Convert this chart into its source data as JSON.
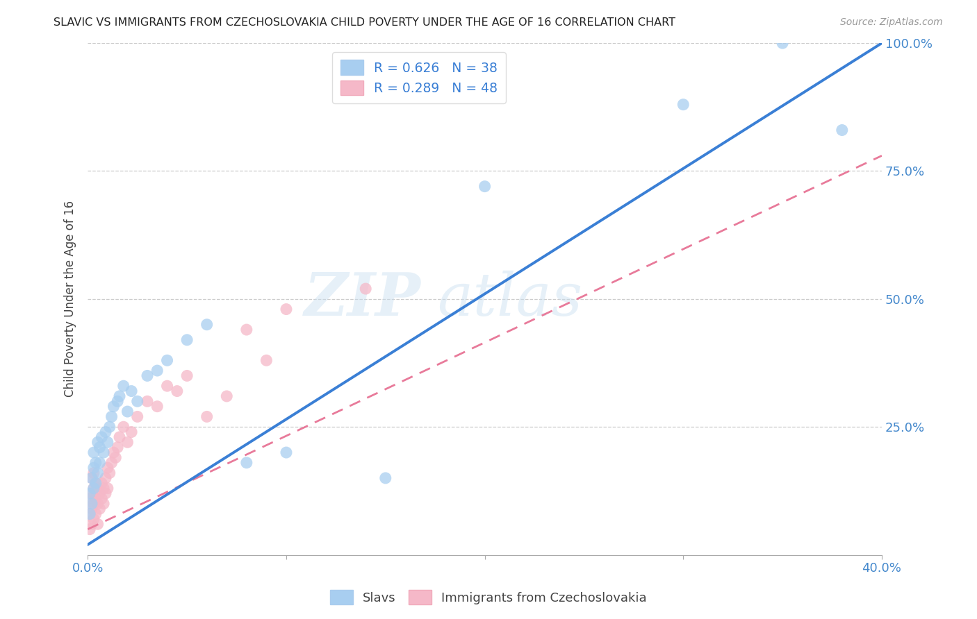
{
  "title": "SLAVIC VS IMMIGRANTS FROM CZECHOSLOVAKIA CHILD POVERTY UNDER THE AGE OF 16 CORRELATION CHART",
  "source": "Source: ZipAtlas.com",
  "ylabel": "Child Poverty Under the Age of 16",
  "xlim": [
    0.0,
    0.4
  ],
  "ylim": [
    0.0,
    1.0
  ],
  "r_slavs": 0.626,
  "n_slavs": 38,
  "r_czech": 0.289,
  "n_czech": 48,
  "slavs_color": "#a8cef0",
  "czech_color": "#f5b8c8",
  "slavs_line_color": "#3a7fd5",
  "czech_line_color": "#e87a9a",
  "watermark_zip": "ZIP",
  "watermark_atlas": "atlas",
  "slavs_x": [
    0.001,
    0.001,
    0.002,
    0.002,
    0.003,
    0.003,
    0.003,
    0.004,
    0.004,
    0.005,
    0.005,
    0.006,
    0.006,
    0.007,
    0.008,
    0.009,
    0.01,
    0.011,
    0.012,
    0.013,
    0.015,
    0.016,
    0.018,
    0.02,
    0.022,
    0.025,
    0.03,
    0.035,
    0.04,
    0.05,
    0.06,
    0.08,
    0.1,
    0.15,
    0.2,
    0.3,
    0.35,
    0.38
  ],
  "slavs_y": [
    0.08,
    0.12,
    0.1,
    0.15,
    0.13,
    0.17,
    0.2,
    0.14,
    0.18,
    0.16,
    0.22,
    0.18,
    0.21,
    0.23,
    0.2,
    0.24,
    0.22,
    0.25,
    0.27,
    0.29,
    0.3,
    0.31,
    0.33,
    0.28,
    0.32,
    0.3,
    0.35,
    0.36,
    0.38,
    0.42,
    0.45,
    0.18,
    0.2,
    0.15,
    0.72,
    0.88,
    1.0,
    0.83
  ],
  "czech_x": [
    0.001,
    0.001,
    0.001,
    0.002,
    0.002,
    0.002,
    0.002,
    0.003,
    0.003,
    0.003,
    0.003,
    0.004,
    0.004,
    0.004,
    0.005,
    0.005,
    0.005,
    0.006,
    0.006,
    0.007,
    0.007,
    0.008,
    0.008,
    0.009,
    0.009,
    0.01,
    0.01,
    0.011,
    0.012,
    0.013,
    0.014,
    0.015,
    0.016,
    0.018,
    0.02,
    0.022,
    0.025,
    0.03,
    0.035,
    0.04,
    0.045,
    0.05,
    0.06,
    0.07,
    0.08,
    0.09,
    0.1,
    0.14
  ],
  "czech_y": [
    0.05,
    0.08,
    0.11,
    0.06,
    0.09,
    0.12,
    0.15,
    0.07,
    0.1,
    0.13,
    0.16,
    0.08,
    0.11,
    0.14,
    0.06,
    0.1,
    0.13,
    0.09,
    0.12,
    0.11,
    0.14,
    0.1,
    0.13,
    0.12,
    0.15,
    0.13,
    0.17,
    0.16,
    0.18,
    0.2,
    0.19,
    0.21,
    0.23,
    0.25,
    0.22,
    0.24,
    0.27,
    0.3,
    0.29,
    0.33,
    0.32,
    0.35,
    0.27,
    0.31,
    0.44,
    0.38,
    0.48,
    0.52
  ],
  "slavs_line_x0": 0.0,
  "slavs_line_y0": 0.02,
  "slavs_line_x1": 0.4,
  "slavs_line_y1": 1.0,
  "czech_line_x0": 0.0,
  "czech_line_y0": 0.05,
  "czech_line_x1": 0.4,
  "czech_line_y1": 0.78
}
